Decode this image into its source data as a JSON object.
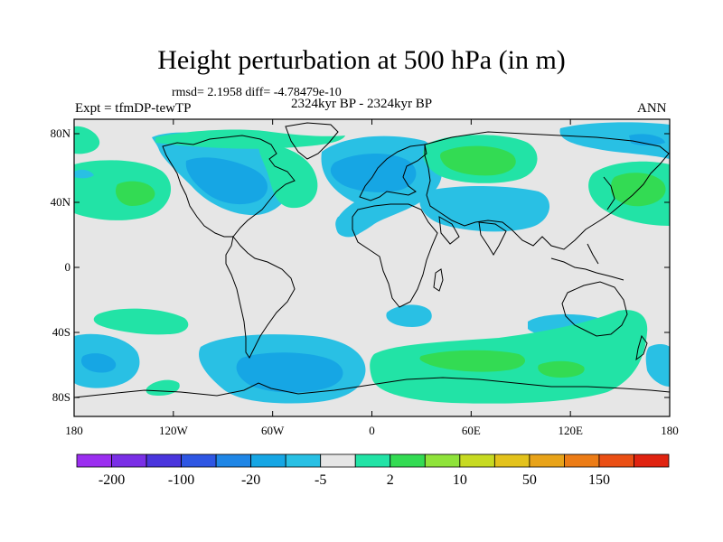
{
  "title": "Height perturbation at 500 hPa (in m)",
  "stats": "rmsd= 2.1958 diff= -4.78479e-10",
  "periods": "2324kyr BP - 2324kyr BP",
  "experiment": "Expt = tfmDP-tewTP",
  "season": "ANN",
  "axes": {
    "lat_labels": [
      "80N",
      "40N",
      "0",
      "40S",
      "80S"
    ],
    "lon_labels": [
      "180",
      "120W",
      "60W",
      "0",
      "60E",
      "120E",
      "180"
    ]
  },
  "colorbar": {
    "colors": [
      "#9b2ef0",
      "#7a2fe6",
      "#4a35dd",
      "#2e56e3",
      "#1f86e6",
      "#16a6e4",
      "#29c0e4",
      "#e6e6e6",
      "#22e3a6",
      "#33db53",
      "#8fe33a",
      "#c7da22",
      "#e3c21c",
      "#e8a319",
      "#ec7c16",
      "#ea4f14",
      "#e02310"
    ],
    "labels": [
      "-200",
      "-100",
      "-20",
      "-5",
      "2",
      "10",
      "50",
      "150"
    ]
  },
  "colors": {
    "background": "#e6e6e6",
    "cyan": "#29c0e4",
    "blue": "#16a6e4",
    "green": "#22e3a6",
    "dark_green": "#33db53",
    "coast": "#000000"
  }
}
